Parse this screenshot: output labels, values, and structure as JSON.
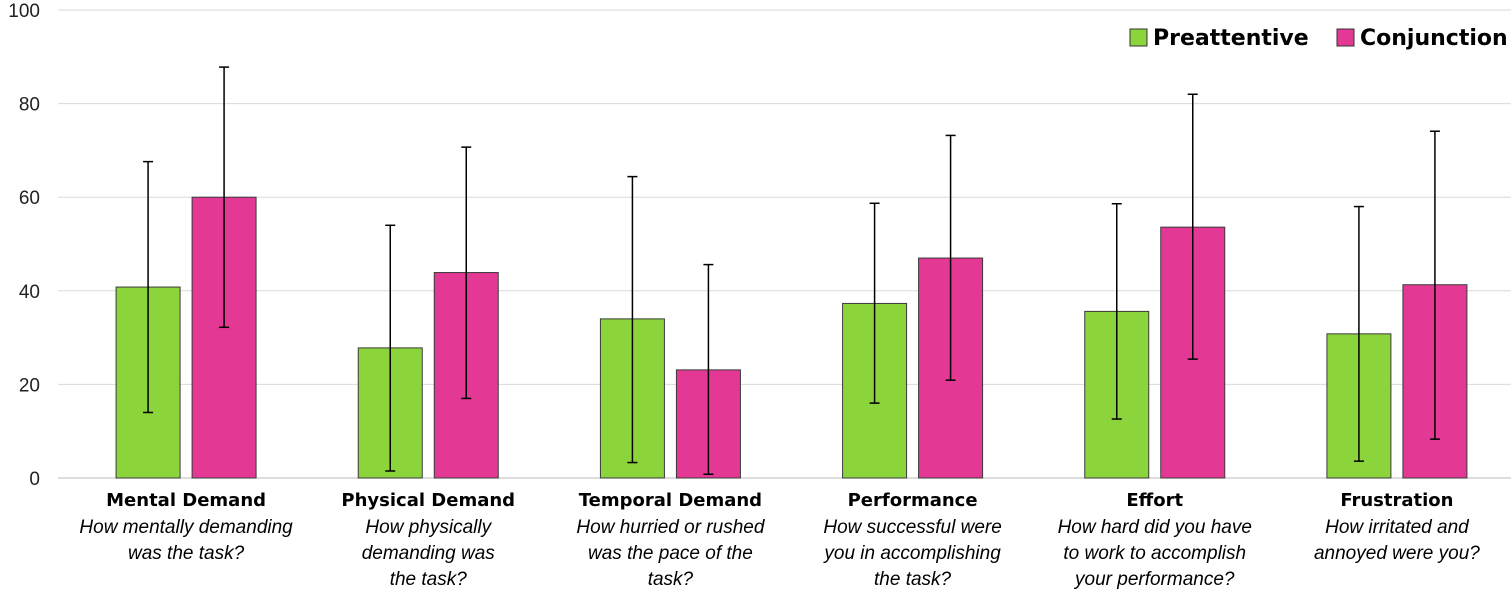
{
  "chart_data": {
    "type": "bar",
    "ylim": [
      0,
      100
    ],
    "yticks": [
      "0",
      "20",
      "40",
      "60",
      "80",
      "100"
    ],
    "grid": true,
    "legend_position": "top-right",
    "categories": [
      {
        "name": "Mental Demand",
        "desc": [
          "How mentally demanding",
          "was the task?"
        ]
      },
      {
        "name": "Physical Demand",
        "desc": [
          "How physically",
          "demanding was",
          "the task?"
        ]
      },
      {
        "name": "Temporal Demand",
        "desc": [
          "How hurried or rushed",
          "was the pace of the",
          "task?"
        ]
      },
      {
        "name": "Performance",
        "desc": [
          "How successful were",
          "you in accomplishing",
          "the task?"
        ]
      },
      {
        "name": "Effort",
        "desc": [
          "How hard did you have",
          "to work to accomplish",
          "your performance?"
        ]
      },
      {
        "name": "Frustration",
        "desc": [
          "How irritated and",
          "annoyed were you?"
        ]
      }
    ],
    "series": [
      {
        "name": "Preattentive",
        "color": "#8cd43b",
        "values": [
          40.8,
          27.8,
          34.0,
          37.3,
          35.6,
          30.8
        ],
        "error_low": [
          14.0,
          1.5,
          3.3,
          16.0,
          12.6,
          3.6
        ],
        "error_high": [
          67.6,
          54.0,
          64.4,
          58.7,
          58.6,
          58.0
        ]
      },
      {
        "name": "Conjunction",
        "color": "#e33994",
        "values": [
          60.0,
          43.9,
          23.1,
          47.0,
          53.6,
          41.3
        ],
        "error_low": [
          32.2,
          17.0,
          0.8,
          20.9,
          25.4,
          8.3
        ],
        "error_high": [
          87.8,
          70.7,
          45.6,
          73.2,
          82.0,
          74.1
        ]
      }
    ]
  }
}
